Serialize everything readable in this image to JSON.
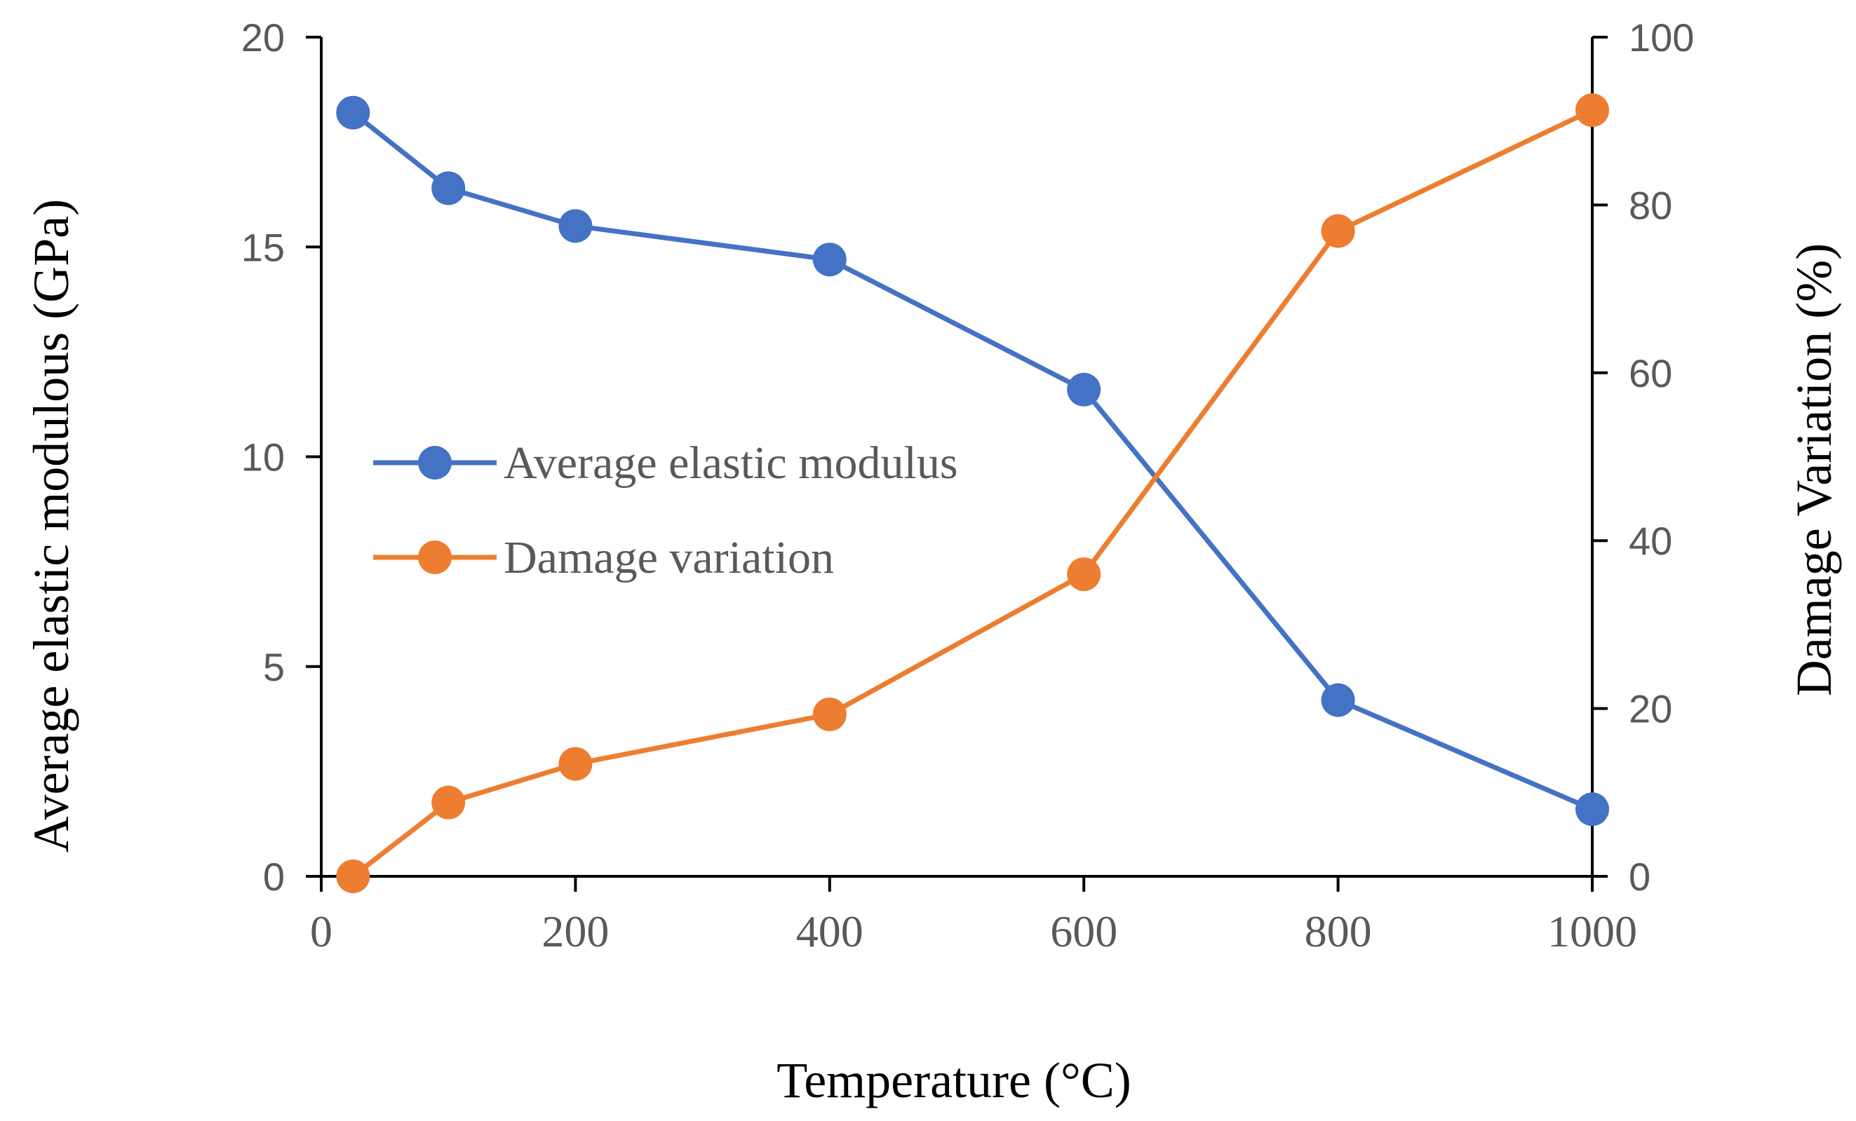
{
  "chart_data": {
    "type": "line",
    "title": "",
    "xlabel": "Temperature (°C)",
    "ylabel": "Average elastic modulous  (GPa)",
    "y2label": "Damage Variation (%)",
    "xlim": [
      0,
      1000
    ],
    "ylim": [
      0,
      20
    ],
    "y2lim": [
      0,
      100
    ],
    "x_ticks": [
      "0",
      "200",
      "400",
      "600",
      "800",
      "1000"
    ],
    "y_ticks": [
      "0",
      "5",
      "10",
      "15",
      "20"
    ],
    "y2_ticks": [
      "0",
      "20",
      "40",
      "60",
      "80",
      "100"
    ],
    "grid": false,
    "legend_position": "center-left",
    "series": [
      {
        "name": "Average elastic modulus",
        "axis": "left",
        "color": "#4472C4",
        "x": [
          25,
          100,
          200,
          400,
          600,
          800,
          1000
        ],
        "values": [
          18.2,
          16.4,
          15.5,
          14.7,
          11.6,
          4.2,
          1.6
        ]
      },
      {
        "name": "Damage variation",
        "axis": "right",
        "color": "#ED7D31",
        "x": [
          25,
          100,
          200,
          400,
          600,
          800,
          1000
        ],
        "values": [
          0,
          8.8,
          13.4,
          19.3,
          36,
          76.9,
          91.3
        ]
      }
    ]
  }
}
